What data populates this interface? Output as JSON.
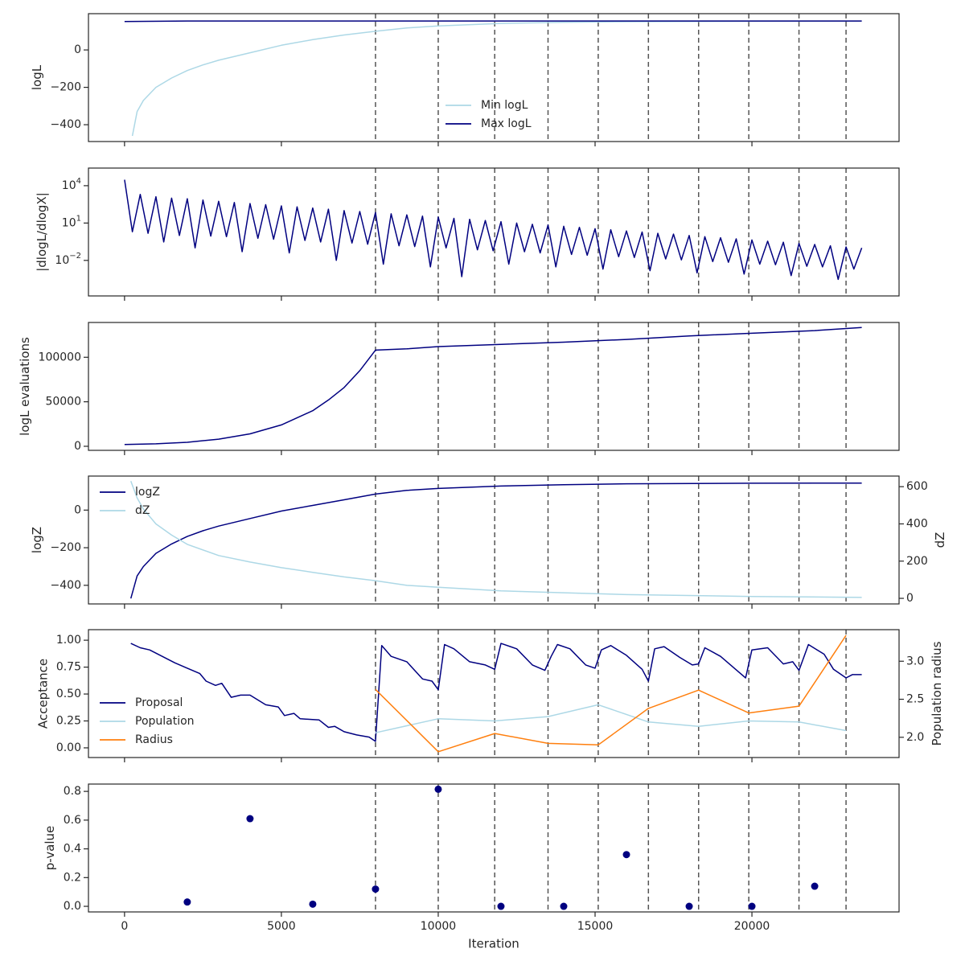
{
  "chart_data": [
    {
      "type": "line",
      "ylabel": "logL",
      "xlim": [
        -1150,
        24690
      ],
      "xticks": [
        0,
        5000,
        10000,
        15000,
        20000
      ],
      "vlines": [
        8000,
        10000,
        11800,
        13500,
        15100,
        16700,
        18300,
        19900,
        21500,
        23000
      ],
      "ylim": [
        -490,
        194
      ],
      "yticks": [
        {
          "value": -400,
          "label": "−400"
        },
        {
          "value": -200,
          "label": "−200"
        },
        0
      ],
      "legend": "lower center",
      "series": [
        {
          "name": "Min logL",
          "color": "#add8e6",
          "x": [
            250,
            400,
            600,
            1000,
            1500,
            2000,
            2500,
            3000,
            4000,
            5000,
            6000,
            7000,
            8000,
            9000,
            10000,
            12000,
            14000,
            16000,
            20000,
            23500
          ],
          "values": [
            -460,
            -330,
            -270,
            -200,
            -150,
            -110,
            -80,
            -55,
            -15,
            25,
            55,
            80,
            100,
            118,
            128,
            142,
            148,
            151,
            153,
            154
          ]
        },
        {
          "name": "Max logL",
          "color": "#000080",
          "x": [
            0,
            2000,
            23500
          ],
          "values": [
            152,
            155,
            155
          ]
        }
      ]
    },
    {
      "type": "line",
      "ylabel": "|dlogL/dlogX|",
      "yscale": "log",
      "xlim": [
        -1150,
        24690
      ],
      "xticks": [
        0,
        5000,
        10000,
        15000,
        20000
      ],
      "vlines": [
        8000,
        10000,
        11800,
        13500,
        15100,
        16700,
        18300,
        19900,
        21500,
        23000
      ],
      "ylim": [
        1.4e-05,
        260000
      ],
      "yticks": [
        {
          "value": 0.01,
          "label": "10",
          "exponent": "−2"
        },
        {
          "value": 10,
          "label": "10",
          "exponent": "1"
        },
        {
          "value": 10000,
          "label": "10",
          "exponent": "4"
        }
      ],
      "series": [
        {
          "color": "#000080",
          "x": [
            0,
            250,
            500,
            750,
            1000,
            1250,
            1500,
            1750,
            2000,
            2250,
            2500,
            2750,
            3000,
            3250,
            3500,
            3750,
            4000,
            4250,
            4500,
            4750,
            5000,
            5250,
            5500,
            5750,
            6000,
            6250,
            6500,
            6750,
            7000,
            7250,
            7500,
            7750,
            8000,
            8250,
            8500,
            8750,
            9000,
            9250,
            9500,
            9750,
            10000,
            10250,
            10500,
            10750,
            11000,
            11250,
            11500,
            11750,
            12000,
            12250,
            12500,
            12750,
            13000,
            13250,
            13500,
            13750,
            14000,
            14250,
            14500,
            14750,
            15000,
            15250,
            15500,
            15750,
            16000,
            16250,
            16500,
            16750,
            17000,
            17250,
            17500,
            17750,
            18000,
            18250,
            18500,
            18750,
            19000,
            19250,
            19500,
            19750,
            20000,
            20250,
            20500,
            20750,
            21000,
            21250,
            21500,
            21750,
            22000,
            22250,
            22500,
            22750,
            23000,
            23250,
            23500
          ],
          "values": [
            30000,
            2,
            2000,
            1.5,
            1300,
            0.3,
            1000,
            1,
            900,
            0.1,
            700,
            0.9,
            560,
            0.8,
            450,
            0.05,
            370,
            0.6,
            300,
            0.5,
            240,
            0.04,
            200,
            0.4,
            160,
            0.3,
            130,
            0.01,
            100,
            0.25,
            85,
            0.2,
            70,
            0.005,
            55,
            0.15,
            45,
            0.13,
            36,
            0.003,
            30,
            0.1,
            24,
            0.0005,
            20,
            0.07,
            16,
            0.06,
            13,
            0.005,
            10,
            0.05,
            8,
            0.04,
            7,
            0.003,
            5.5,
            0.03,
            4.5,
            0.026,
            3.5,
            0.002,
            2.9,
            0.02,
            2.3,
            0.017,
            1.9,
            0.0015,
            1.5,
            0.013,
            1.3,
            0.011,
            1,
            0.001,
            0.8,
            0.008,
            0.66,
            0.007,
            0.54,
            0.0008,
            0.44,
            0.005,
            0.35,
            0.0045,
            0.29,
            0.0006,
            0.23,
            0.0034,
            0.19,
            0.003,
            0.15,
            0.0003,
            0.12,
            0.002,
            0.1
          ]
        }
      ]
    },
    {
      "type": "line",
      "ylabel": "logL evaluations",
      "xlim": [
        -1150,
        24690
      ],
      "xticks": [
        0,
        5000,
        10000,
        15000,
        20000
      ],
      "vlines": [
        8000,
        10000,
        11800,
        13500,
        15100,
        16700,
        18300,
        19900,
        21500,
        23000
      ],
      "ylim": [
        -4545,
        139090
      ],
      "yticks": [
        0,
        50000,
        100000
      ],
      "series": [
        {
          "color": "#000080",
          "x": [
            0,
            1000,
            2000,
            3000,
            4000,
            5000,
            6000,
            6500,
            7000,
            7500,
            8000,
            9000,
            10000,
            12000,
            14000,
            16000,
            18000,
            20000,
            22000,
            23500
          ],
          "values": [
            2000,
            2800,
            4500,
            8000,
            14000,
            24000,
            40000,
            52000,
            66000,
            85000,
            108000,
            109500,
            112000,
            114500,
            117000,
            120000,
            124000,
            127000,
            130000,
            133500
          ]
        }
      ]
    },
    {
      "type": "line",
      "ylabel": "logZ",
      "y2label": "dZ",
      "xlim": [
        -1150,
        24690
      ],
      "xticks": [
        0,
        5000,
        10000,
        15000,
        20000
      ],
      "vlines": [
        8000,
        10000,
        11800,
        13500,
        15100,
        16700,
        18300,
        19900,
        21500,
        23000
      ],
      "ylim": [
        -499,
        181
      ],
      "yticks": [
        {
          "value": -400,
          "label": "−400"
        },
        {
          "value": -200,
          "label": "−200"
        },
        0
      ],
      "y2lim": [
        -30,
        657
      ],
      "y2ticks": [
        0,
        200,
        400,
        600
      ],
      "legend": "upper left",
      "series": [
        {
          "name": "logZ",
          "color": "#000080",
          "x": [
            200,
            400,
            600,
            1000,
            1500,
            2000,
            2500,
            3000,
            4000,
            5000,
            6000,
            7000,
            8000,
            9000,
            10000,
            12000,
            14000,
            16000,
            20000,
            23500
          ],
          "values": [
            -470,
            -350,
            -300,
            -230,
            -180,
            -140,
            -110,
            -85,
            -45,
            -5,
            25,
            55,
            85,
            105,
            115,
            128,
            135,
            140,
            143,
            144
          ]
        },
        {
          "name": "dZ",
          "color": "#add8e6",
          "axis": "y2",
          "x": [
            200,
            400,
            600,
            1000,
            1500,
            2000,
            3000,
            4000,
            5000,
            6000,
            7000,
            8000,
            9000,
            10000,
            12000,
            14000,
            16000,
            20000,
            23500
          ],
          "values": [
            630,
            540,
            480,
            400,
            340,
            290,
            230,
            195,
            165,
            140,
            115,
            95,
            70,
            60,
            40,
            30,
            20,
            10,
            5
          ]
        }
      ]
    },
    {
      "type": "line",
      "ylabel": "Acceptance",
      "y2label": "Population radius",
      "xlim": [
        -1150,
        24690
      ],
      "xticks": [
        0,
        5000,
        10000,
        15000,
        20000
      ],
      "vlines": [
        8000,
        10000,
        11800,
        13500,
        15100,
        16700,
        18300,
        19900,
        21500,
        23000
      ],
      "ylim": [
        -0.09,
        1.098
      ],
      "yticks": [
        {
          "value": 0,
          "label": "0.00"
        },
        0.25,
        {
          "value": 0.5,
          "label": "0.50"
        },
        0.75,
        {
          "value": 1,
          "label": "1.00"
        }
      ],
      "y2lim": [
        1.734,
        3.415
      ],
      "y2ticks": [
        {
          "value": 2,
          "label": "2.0"
        },
        2.5,
        {
          "value": 3,
          "label": "3.0"
        }
      ],
      "legend": "lower left",
      "series": [
        {
          "name": "Proposal",
          "color": "#000080",
          "x": [
            200,
            500,
            800,
            1200,
            1600,
            2000,
            2400,
            2600,
            2900,
            3100,
            3400,
            3700,
            4000,
            4500,
            4900,
            5100,
            5400,
            5600,
            6200,
            6500,
            6700,
            7000,
            7400,
            7800,
            8000,
            8200,
            8500,
            9000,
            9500,
            9800,
            10000,
            10200,
            10500,
            11000,
            11500,
            11800,
            12000,
            12500,
            13000,
            13400,
            13600,
            13800,
            14200,
            14700,
            15000,
            15200,
            15500,
            16000,
            16500,
            16700,
            16900,
            17200,
            17700,
            18100,
            18300,
            18500,
            19000,
            19600,
            19800,
            20000,
            20500,
            21000,
            21300,
            21500,
            21800,
            22300,
            22600,
            23000,
            23200,
            23500
          ],
          "values": [
            0.97,
            0.93,
            0.91,
            0.85,
            0.79,
            0.74,
            0.69,
            0.62,
            0.58,
            0.6,
            0.47,
            0.49,
            0.49,
            0.4,
            0.38,
            0.3,
            0.32,
            0.27,
            0.26,
            0.19,
            0.2,
            0.15,
            0.12,
            0.1,
            0.06,
            0.95,
            0.85,
            0.8,
            0.64,
            0.62,
            0.54,
            0.96,
            0.92,
            0.8,
            0.77,
            0.73,
            0.97,
            0.92,
            0.77,
            0.72,
            0.85,
            0.96,
            0.92,
            0.77,
            0.74,
            0.91,
            0.95,
            0.86,
            0.73,
            0.62,
            0.92,
            0.94,
            0.84,
            0.77,
            0.78,
            0.93,
            0.85,
            0.7,
            0.65,
            0.91,
            0.93,
            0.78,
            0.8,
            0.72,
            0.96,
            0.87,
            0.73,
            0.65,
            0.68,
            0.68
          ]
        },
        {
          "name": "Population",
          "color": "#add8e6",
          "x": [
            8000,
            10000,
            11800,
            13500,
            15100,
            16700,
            18300,
            19900,
            21500,
            23000
          ],
          "values": [
            0.14,
            0.27,
            0.25,
            0.29,
            0.4,
            0.24,
            0.2,
            0.25,
            0.24,
            0.16
          ]
        },
        {
          "name": "Radius",
          "color": "#ff7f0e",
          "axis": "y2",
          "x": [
            8000,
            10000,
            11800,
            13500,
            15100,
            16700,
            18300,
            19900,
            21500,
            23000
          ],
          "values": [
            2.63,
            1.81,
            2.05,
            1.92,
            1.9,
            2.38,
            2.62,
            2.32,
            2.41,
            3.34
          ]
        }
      ]
    },
    {
      "type": "scatter",
      "ylabel": "p-value",
      "xlabel": "Iteration",
      "xlim": [
        -1150,
        24690
      ],
      "xticks": [
        0,
        5000,
        10000,
        15000,
        20000
      ],
      "vlines": [
        8000,
        10000,
        11800,
        13500,
        15100,
        16700,
        18300,
        19900,
        21500,
        23000
      ],
      "ylim": [
        -0.039,
        0.851
      ],
      "yticks": [
        {
          "value": 0,
          "label": "0.0"
        },
        0.2,
        0.4,
        0.6,
        0.8
      ],
      "series": [
        {
          "color": "#000080",
          "x": [
            2000,
            4000,
            6000,
            8000,
            10000,
            12000,
            14000,
            16000,
            18000,
            20000,
            22000
          ],
          "values": [
            0.03,
            0.61,
            0.015,
            0.12,
            0.815,
            0,
            0,
            0.36,
            0,
            0,
            0.14
          ]
        }
      ]
    }
  ]
}
